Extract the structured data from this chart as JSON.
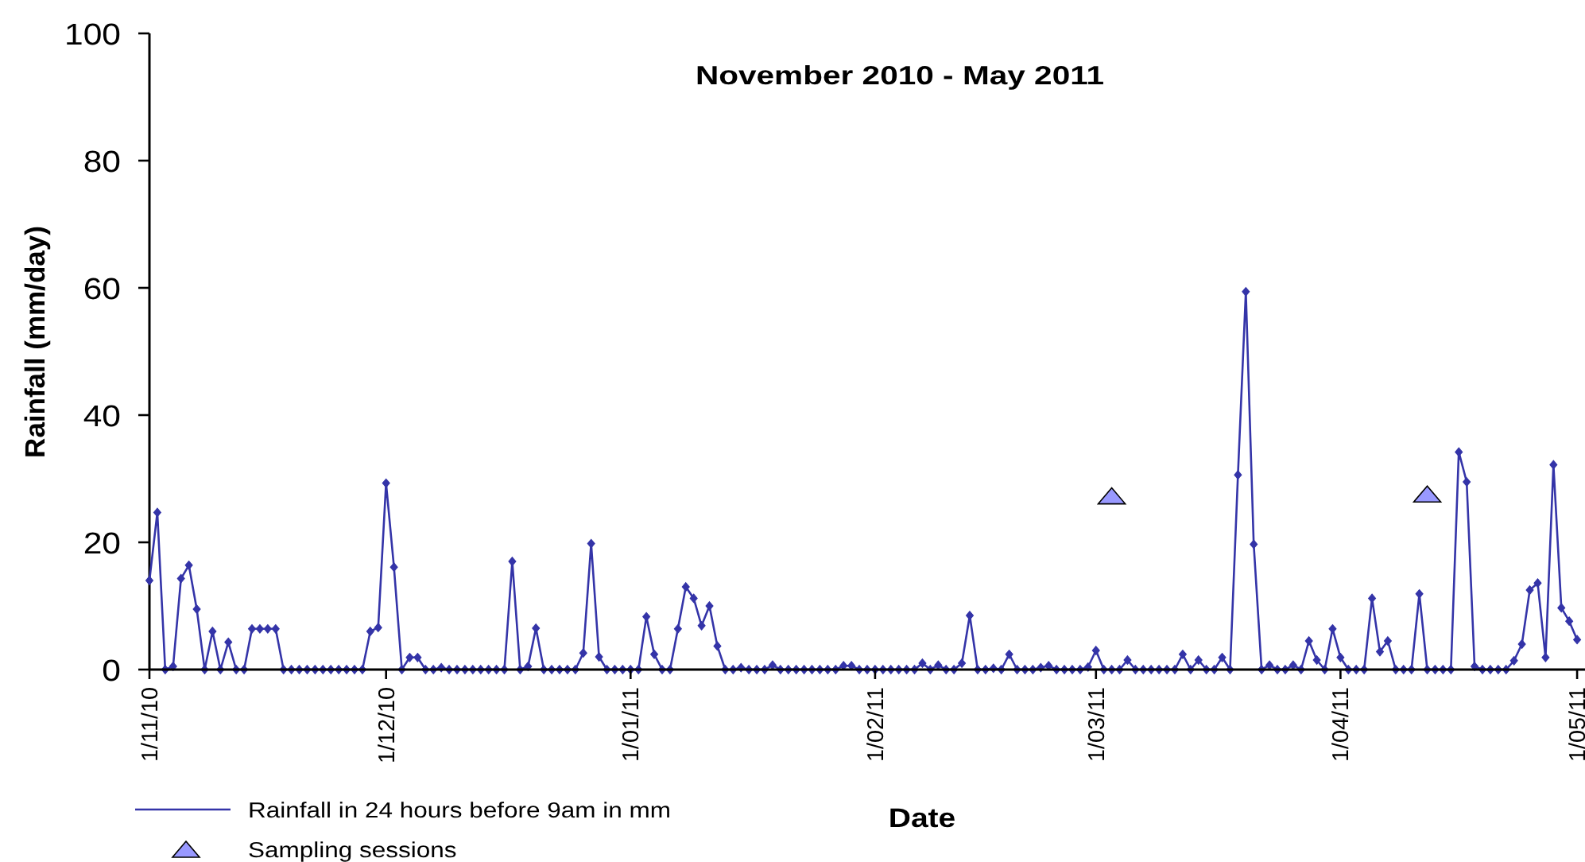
{
  "chart_data": {
    "type": "line",
    "title": "November 2010 - May 2011",
    "xlabel": "Date",
    "ylabel": "Rainfall (mm/day)",
    "xlim": [
      "2010-11-01",
      "2011-05-02"
    ],
    "xticks": [
      {
        "value": "2010-11-01",
        "label": "1/11/10"
      },
      {
        "value": "2010-12-01",
        "label": "1/12/10"
      },
      {
        "value": "2011-01-01",
        "label": "1/01/11"
      },
      {
        "value": "2011-02-01",
        "label": "1/02/11"
      },
      {
        "value": "2011-03-01",
        "label": "1/03/11"
      },
      {
        "value": "2011-04-01",
        "label": "1/04/11"
      },
      {
        "value": "2011-05-01",
        "label": "1/05/11"
      }
    ],
    "ylim": [
      0,
      100
    ],
    "yticks": [
      0,
      20,
      40,
      60,
      80,
      100
    ],
    "legend": "bottom left",
    "series": [
      {
        "name": "Rainfall in 24 hours before 9am in mm",
        "color": "#3434a8",
        "marker": "diamond",
        "x": [
          "2010-11-01",
          "2010-11-02",
          "2010-11-03",
          "2010-11-04",
          "2010-11-05",
          "2010-11-06",
          "2010-11-07",
          "2010-11-08",
          "2010-11-09",
          "2010-11-10",
          "2010-11-11",
          "2010-11-12",
          "2010-11-13",
          "2010-11-14",
          "2010-11-15",
          "2010-11-16",
          "2010-11-17",
          "2010-11-18",
          "2010-11-19",
          "2010-11-20",
          "2010-11-21",
          "2010-11-22",
          "2010-11-23",
          "2010-11-24",
          "2010-11-25",
          "2010-11-26",
          "2010-11-27",
          "2010-11-28",
          "2010-11-29",
          "2010-11-30",
          "2010-12-01",
          "2010-12-02",
          "2010-12-03",
          "2010-12-04",
          "2010-12-05",
          "2010-12-06",
          "2010-12-07",
          "2010-12-08",
          "2010-12-09",
          "2010-12-10",
          "2010-12-11",
          "2010-12-12",
          "2010-12-13",
          "2010-12-14",
          "2010-12-15",
          "2010-12-16",
          "2010-12-17",
          "2010-12-18",
          "2010-12-19",
          "2010-12-20",
          "2010-12-21",
          "2010-12-22",
          "2010-12-23",
          "2010-12-24",
          "2010-12-25",
          "2010-12-26",
          "2010-12-27",
          "2010-12-28",
          "2010-12-29",
          "2010-12-30",
          "2010-12-31",
          "2011-01-01",
          "2011-01-02",
          "2011-01-03",
          "2011-01-04",
          "2011-01-05",
          "2011-01-06",
          "2011-01-07",
          "2011-01-08",
          "2011-01-09",
          "2011-01-10",
          "2011-01-11",
          "2011-01-12",
          "2011-01-13",
          "2011-01-14",
          "2011-01-15",
          "2011-01-16",
          "2011-01-17",
          "2011-01-18",
          "2011-01-19",
          "2011-01-20",
          "2011-01-21",
          "2011-01-22",
          "2011-01-23",
          "2011-01-24",
          "2011-01-25",
          "2011-01-26",
          "2011-01-27",
          "2011-01-28",
          "2011-01-29",
          "2011-01-30",
          "2011-01-31",
          "2011-02-01",
          "2011-02-02",
          "2011-02-03",
          "2011-02-04",
          "2011-02-05",
          "2011-02-06",
          "2011-02-07",
          "2011-02-08",
          "2011-02-09",
          "2011-02-10",
          "2011-02-11",
          "2011-02-12",
          "2011-02-13",
          "2011-02-14",
          "2011-02-15",
          "2011-02-16",
          "2011-02-17",
          "2011-02-18",
          "2011-02-19",
          "2011-02-20",
          "2011-02-21",
          "2011-02-22",
          "2011-02-23",
          "2011-02-24",
          "2011-02-25",
          "2011-02-26",
          "2011-02-27",
          "2011-02-28",
          "2011-03-01",
          "2011-03-02",
          "2011-03-03",
          "2011-03-04",
          "2011-03-05",
          "2011-03-06",
          "2011-03-07",
          "2011-03-08",
          "2011-03-09",
          "2011-03-10",
          "2011-03-11",
          "2011-03-12",
          "2011-03-13",
          "2011-03-14",
          "2011-03-15",
          "2011-03-16",
          "2011-03-17",
          "2011-03-18",
          "2011-03-19",
          "2011-03-20",
          "2011-03-21",
          "2011-03-22",
          "2011-03-23",
          "2011-03-24",
          "2011-03-25",
          "2011-03-26",
          "2011-03-27",
          "2011-03-28",
          "2011-03-29",
          "2011-03-30",
          "2011-03-31",
          "2011-04-01",
          "2011-04-02",
          "2011-04-03",
          "2011-04-04",
          "2011-04-05",
          "2011-04-06",
          "2011-04-07",
          "2011-04-08",
          "2011-04-09",
          "2011-04-10",
          "2011-04-11",
          "2011-04-12",
          "2011-04-13",
          "2011-04-14",
          "2011-04-15",
          "2011-04-16",
          "2011-04-17",
          "2011-04-18",
          "2011-04-19",
          "2011-04-20",
          "2011-04-21",
          "2011-04-22",
          "2011-04-23",
          "2011-04-24",
          "2011-04-25",
          "2011-04-26",
          "2011-04-27",
          "2011-04-28",
          "2011-04-29",
          "2011-04-30",
          "2011-05-01"
        ],
        "values": [
          14,
          24.7,
          0,
          0.5,
          14.3,
          16.4,
          9.5,
          0,
          6,
          0,
          4.3,
          0,
          0,
          6.4,
          6.4,
          6.4,
          6.4,
          0,
          0,
          0,
          0,
          0,
          0,
          0,
          0,
          0,
          0,
          0,
          6,
          6.6,
          29.3,
          16.1,
          0,
          1.9,
          1.9,
          0,
          0,
          0.3,
          0,
          0,
          0,
          0,
          0,
          0,
          0,
          0,
          17,
          0,
          0.5,
          6.5,
          0,
          0,
          0,
          0,
          0,
          2.6,
          19.8,
          2,
          0,
          0,
          0,
          0,
          0,
          8.3,
          2.4,
          0,
          0,
          6.4,
          13,
          11.2,
          6.9,
          10,
          3.7,
          0,
          0,
          0.3,
          0,
          0,
          0,
          0.7,
          0,
          0,
          0,
          0,
          0,
          0,
          0,
          0,
          0.6,
          0.6,
          0,
          0,
          0,
          0,
          0,
          0,
          0,
          0,
          1,
          0,
          0.7,
          0,
          0,
          1,
          8.5,
          0,
          0,
          0.2,
          0,
          2.4,
          0,
          0,
          0,
          0.3,
          0.6,
          0,
          0,
          0,
          0,
          0.4,
          3,
          0,
          0,
          0,
          1.5,
          0,
          0,
          0,
          0,
          0,
          0,
          2.4,
          0,
          1.5,
          0,
          0,
          1.9,
          0,
          30.6,
          59.4,
          19.7,
          0,
          0.7,
          0,
          0,
          0.7,
          0,
          4.5,
          1.5,
          0,
          6.4,
          1.9,
          0,
          0,
          0,
          11.2,
          2.8,
          4.5,
          0,
          0,
          0,
          11.9,
          0,
          0,
          0,
          0,
          34.2,
          29.5,
          0.5,
          0,
          0,
          0,
          0,
          1.4,
          4,
          12.5,
          13.6,
          1.9,
          32.2,
          9.7,
          7.6,
          4.7
        ]
      },
      {
        "name": "Sampling sessions",
        "type": "scatter",
        "color": "#9999ff",
        "marker": "triangle",
        "x": [
          "2011-03-03",
          "2011-04-12"
        ],
        "values": [
          27.3,
          27.6
        ]
      }
    ]
  }
}
